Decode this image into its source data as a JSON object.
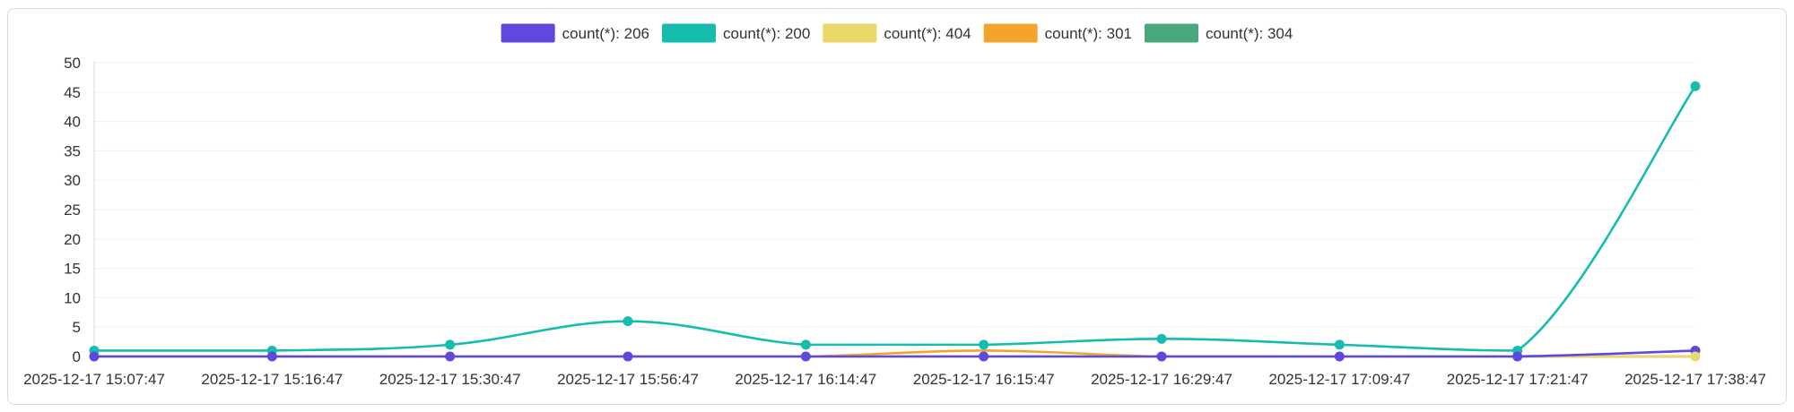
{
  "chart_data": {
    "type": "line",
    "title": "",
    "xlabel": "",
    "ylabel": "",
    "ylim": [
      0,
      50
    ],
    "y_ticks": [
      "0",
      "5",
      "10",
      "15",
      "20",
      "25",
      "30",
      "35",
      "40",
      "45",
      "50"
    ],
    "grid": "horizontal",
    "legend_position": "top-center",
    "x": [
      "2025-12-17 15:07:47",
      "2025-12-17 15:16:47",
      "2025-12-17 15:30:47",
      "2025-12-17 15:56:47",
      "2025-12-17 16:14:47",
      "2025-12-17 16:15:47",
      "2025-12-17 16:29:47",
      "2025-12-17 17:09:47",
      "2025-12-17 17:21:47",
      "2025-12-17 17:38:47"
    ],
    "series": [
      {
        "name": "count(*): 206",
        "color": "#5f48db",
        "values": [
          0,
          0,
          0,
          0,
          0,
          0,
          0,
          0,
          0,
          1
        ]
      },
      {
        "name": "count(*): 200",
        "color": "#16bcae",
        "values": [
          1,
          1,
          2,
          6,
          2,
          2,
          3,
          2,
          1,
          46
        ]
      },
      {
        "name": "count(*): 404",
        "color": "#e8d96a",
        "values": [
          0,
          0,
          0,
          0,
          0,
          0,
          0,
          0,
          0,
          0
        ]
      },
      {
        "name": "count(*): 301",
        "color": "#f2a42d",
        "values": [
          0,
          0,
          0,
          0,
          0,
          1,
          0,
          0,
          0,
          0
        ]
      },
      {
        "name": "count(*): 304",
        "color": "#4aa77c",
        "values": [
          0,
          0,
          0,
          0,
          0,
          0,
          0,
          0,
          0,
          0
        ]
      }
    ],
    "draw_order": [
      4,
      3,
      2,
      1,
      0
    ],
    "markers": [
      {
        "series": 1,
        "x_index": "all"
      },
      {
        "series": 0,
        "x_index": "all"
      },
      {
        "series": 2,
        "x_index": [
          9
        ]
      }
    ]
  }
}
